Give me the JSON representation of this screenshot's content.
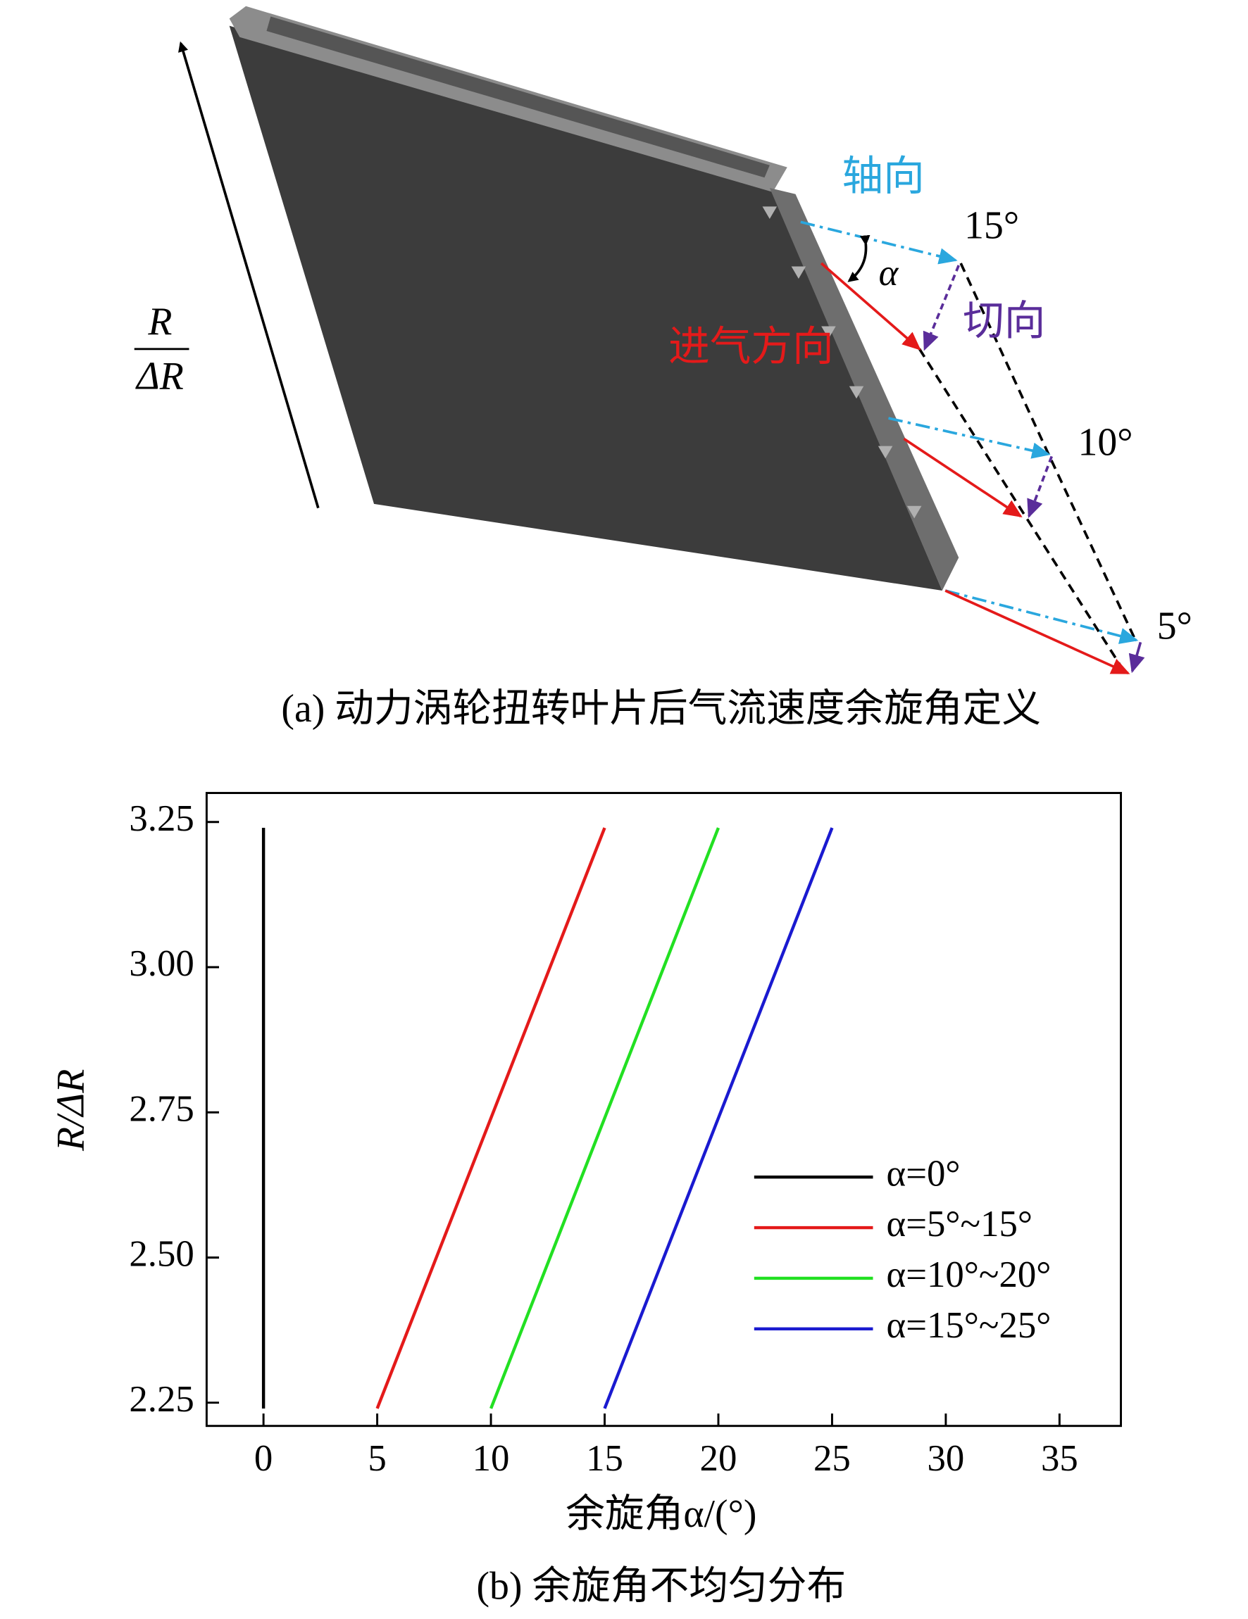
{
  "diagram": {
    "radius_numerator": "R",
    "radius_denominator": "ΔR",
    "axial": "轴向",
    "tangential": "切向",
    "inflow": "进气方向",
    "alpha": "α",
    "angles": [
      "15°",
      "10°",
      "5°"
    ],
    "caption": "(a) 动力涡轮扭转叶片后气流速度余旋角定义"
  },
  "chart_data": {
    "type": "line",
    "caption": "(b) 余旋角不均匀分布",
    "x_label": "余旋角α/(°)",
    "y_label": "R/ΔR",
    "xlim": [
      -2.5,
      37.7
    ],
    "ylim": [
      2.21,
      3.3
    ],
    "xticks": [
      0,
      5,
      10,
      15,
      20,
      25,
      30,
      35
    ],
    "yticks": [
      2.25,
      {
        "value": 2.5,
        "label": "2.50"
      },
      2.75,
      {
        "value": 3.0,
        "label": "3.00"
      },
      3.25
    ],
    "legend": "lower right",
    "series": [
      {
        "name": "α=0°",
        "color": "#000000",
        "x": [
          0,
          0
        ],
        "values": [
          2.24,
          3.24
        ]
      },
      {
        "name": "α=5°~15°",
        "color": "#e41a1a",
        "x": [
          5,
          15
        ],
        "values": [
          2.24,
          3.24
        ]
      },
      {
        "name": "α=10°~20°",
        "color": "#22e022",
        "x": [
          10,
          20
        ],
        "values": [
          2.24,
          3.24
        ]
      },
      {
        "name": "α=15°~25°",
        "color": "#1a1ad0",
        "x": [
          15,
          25
        ],
        "values": [
          2.24,
          3.24
        ]
      }
    ]
  }
}
